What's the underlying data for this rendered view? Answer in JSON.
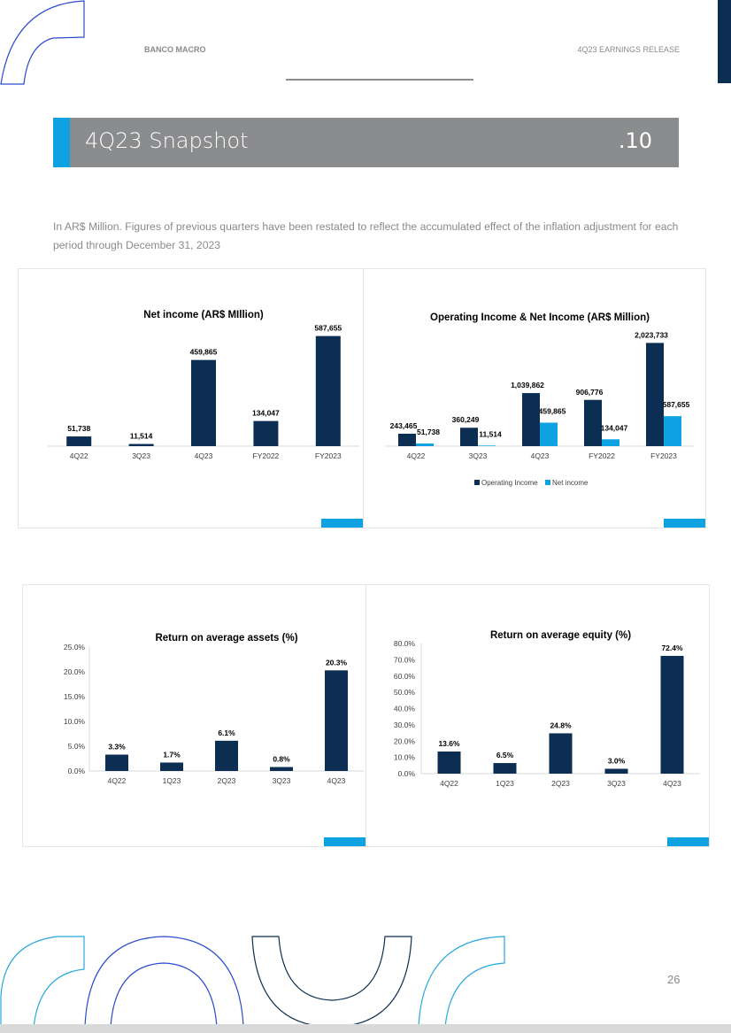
{
  "header": {
    "company": "BANCO MACRO",
    "report": "4Q23 EARNINGS RELEASE"
  },
  "section": {
    "title": "4Q23 Snapshot",
    "number": ".10"
  },
  "intro": "In AR$ Million. Figures of previous quarters have been restated to reflect the accumulated effect of the inflation adjustment for each period through December 31, 2023",
  "page_number": "26",
  "colors": {
    "navy": "#0b2e52",
    "light_blue": "#0ea2e3"
  },
  "chart_data": [
    {
      "type": "bar",
      "title": "Net income (AR$ MIllion)",
      "categories": [
        "4Q22",
        "3Q23",
        "4Q23",
        "FY2022",
        "FY2023"
      ],
      "series": [
        {
          "name": "Net income",
          "values": [
            51738,
            11514,
            459865,
            134047,
            587655
          ],
          "labels": [
            "51,738",
            "11,514",
            "459,865",
            "134,047",
            "587,655"
          ]
        }
      ],
      "ylim": [
        0,
        600000
      ],
      "legend": "none"
    },
    {
      "type": "bar",
      "title": "Operating Income & Net Income (AR$ Million)",
      "categories": [
        "4Q22",
        "3Q23",
        "4Q23",
        "FY2022",
        "FY2023"
      ],
      "series": [
        {
          "name": "Operating Income",
          "values": [
            243465,
            360249,
            1039862,
            906776,
            2023733
          ],
          "labels": [
            "243,465",
            "360,249",
            "1,039,862",
            "906,776",
            "2,023,733"
          ]
        },
        {
          "name": "Net income",
          "values": [
            51738,
            11514,
            459865,
            134047,
            587655
          ],
          "labels": [
            "51,738",
            "11,514",
            "459,865",
            "134,047",
            "587,655"
          ]
        }
      ],
      "ylim": [
        0,
        2100000
      ],
      "legend": "bottom"
    },
    {
      "type": "bar",
      "title": "Return on average assets (%)",
      "categories": [
        "4Q22",
        "1Q23",
        "2Q23",
        "3Q23",
        "4Q23"
      ],
      "series": [
        {
          "name": "ROAA",
          "values": [
            3.3,
            1.7,
            6.1,
            0.8,
            20.3
          ],
          "labels": [
            "3.3%",
            "1.7%",
            "6.1%",
            "0.8%",
            "20.3%"
          ]
        }
      ],
      "yticks": [
        "0.0%",
        "5.0%",
        "10.0%",
        "15.0%",
        "20.0%",
        "25.0%"
      ],
      "ylim": [
        0,
        25
      ],
      "legend": "none"
    },
    {
      "type": "bar",
      "title": "Return on average equity (%)",
      "categories": [
        "4Q22",
        "1Q23",
        "2Q23",
        "3Q23",
        "4Q23"
      ],
      "series": [
        {
          "name": "ROAE",
          "values": [
            13.6,
            6.5,
            24.8,
            3.0,
            72.4
          ],
          "labels": [
            "13.6%",
            "6.5%",
            "24.8%",
            "3.0%",
            "72.4%"
          ]
        }
      ],
      "yticks": [
        "0.0%",
        "10.0%",
        "20.0%",
        "30.0%",
        "40.0%",
        "50.0%",
        "60.0%",
        "70.0%",
        "80.0%"
      ],
      "ylim": [
        0,
        80
      ],
      "legend": "none"
    }
  ]
}
